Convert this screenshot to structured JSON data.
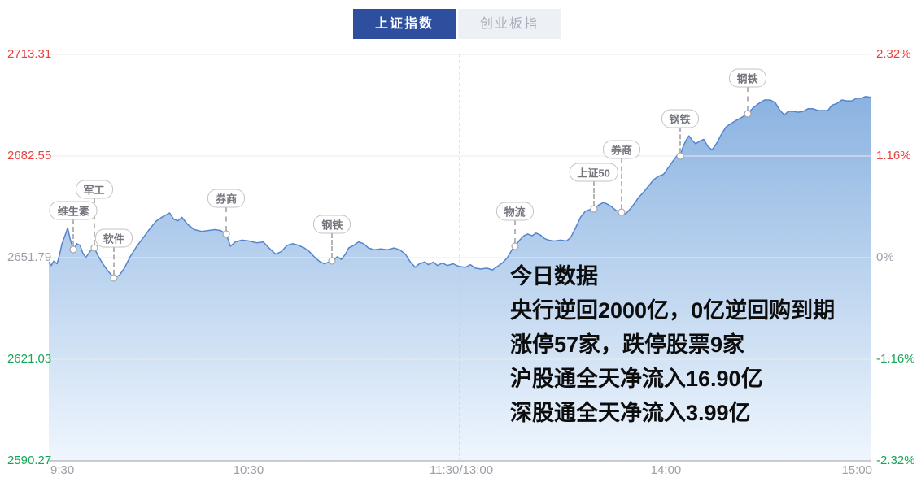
{
  "colors": {
    "accent": "#2e4f9e",
    "up": "#e5413e",
    "down": "#15a554",
    "neutral": "#9aa0a6",
    "line": "#5585cd",
    "fill_top": "#7fabde",
    "fill_bottom": "#eff6fd",
    "grid": "#ebebeb",
    "axis_line": "#9b9b9b"
  },
  "tabs": [
    {
      "label": "上证指数",
      "active": true
    },
    {
      "label": "创业板指",
      "active": false
    }
  ],
  "overlay": {
    "lines": [
      "今日数据",
      "央行逆回2000亿，0亿逆回购到期",
      "涨停57家，跌停股票9家",
      "沪股通全天净流入16.90亿",
      "深股通全天净流入3.99亿"
    ]
  },
  "chart_data": {
    "type": "area",
    "title": "上证指数",
    "baseline_close": 2651.79,
    "price_range": [
      2590.27,
      2713.31
    ],
    "ylim_pct": [
      -2.32,
      2.32
    ],
    "grid": true,
    "axis": [
      {
        "left": "2713.31",
        "right": "2.32%",
        "pct": 2.32,
        "tone": "red"
      },
      {
        "left": "2682.55",
        "right": "1.16%",
        "pct": 1.16,
        "tone": "red"
      },
      {
        "left": "2651.79",
        "right": "0%",
        "pct": 0,
        "tone": "gray"
      },
      {
        "left": "2621.03",
        "right": "-1.16%",
        "pct": -1.16,
        "tone": "green"
      },
      {
        "left": "2590.27",
        "right": "-2.32%",
        "pct": -2.32,
        "tone": "green"
      }
    ],
    "x_ticks": [
      {
        "label": "9:30",
        "f": 0.0,
        "align": "left"
      },
      {
        "label": "10:30",
        "f": 0.241,
        "align": "center"
      },
      {
        "label": "11:30/13:00",
        "f": 0.5,
        "align": "center"
      },
      {
        "label": "14:00",
        "f": 0.749,
        "align": "center"
      },
      {
        "label": "15:00",
        "f": 1.0,
        "align": "right"
      }
    ],
    "annotations": [
      {
        "label": "维生素",
        "f": 0.03,
        "point_pct": 0.09,
        "bubble_pct": 0.54
      },
      {
        "label": "军工",
        "f": 0.055,
        "point_pct": 0.11,
        "bubble_pct": 0.78
      },
      {
        "label": "软件",
        "f": 0.079,
        "point_pct": -0.23,
        "bubble_pct": 0.22
      },
      {
        "label": "券商",
        "f": 0.216,
        "point_pct": 0.27,
        "bubble_pct": 0.68
      },
      {
        "label": "钢铁",
        "f": 0.345,
        "point_pct": -0.04,
        "bubble_pct": 0.38
      },
      {
        "label": "物流",
        "f": 0.567,
        "point_pct": 0.13,
        "bubble_pct": 0.53
      },
      {
        "label": "上证50",
        "f": 0.663,
        "point_pct": 0.56,
        "bubble_pct": 0.97
      },
      {
        "label": "券商",
        "f": 0.697,
        "point_pct": 0.52,
        "bubble_pct": 1.23
      },
      {
        "label": "钢铁",
        "f": 0.768,
        "point_pct": 1.16,
        "bubble_pct": 1.59
      },
      {
        "label": "钢铁",
        "f": 0.85,
        "point_pct": 1.64,
        "bubble_pct": 2.05
      }
    ],
    "series": [
      {
        "name": "上证指数涨跌幅%",
        "points": [
          [
            0.0,
            -0.05
          ],
          [
            0.003,
            -0.09
          ],
          [
            0.006,
            -0.04
          ],
          [
            0.01,
            -0.07
          ],
          [
            0.013,
            0.03
          ],
          [
            0.016,
            0.16
          ],
          [
            0.02,
            0.26
          ],
          [
            0.023,
            0.34
          ],
          [
            0.026,
            0.21
          ],
          [
            0.03,
            0.09
          ],
          [
            0.034,
            0.16
          ],
          [
            0.038,
            0.14
          ],
          [
            0.041,
            0.06
          ],
          [
            0.045,
            0.0
          ],
          [
            0.05,
            0.07
          ],
          [
            0.055,
            0.12
          ],
          [
            0.06,
            0.02
          ],
          [
            0.065,
            -0.06
          ],
          [
            0.071,
            -0.14
          ],
          [
            0.079,
            -0.23
          ],
          [
            0.086,
            -0.2
          ],
          [
            0.092,
            -0.12
          ],
          [
            0.099,
            0.01
          ],
          [
            0.107,
            0.13
          ],
          [
            0.115,
            0.23
          ],
          [
            0.123,
            0.33
          ],
          [
            0.131,
            0.42
          ],
          [
            0.139,
            0.47
          ],
          [
            0.147,
            0.51
          ],
          [
            0.152,
            0.44
          ],
          [
            0.157,
            0.42
          ],
          [
            0.162,
            0.46
          ],
          [
            0.169,
            0.38
          ],
          [
            0.177,
            0.32
          ],
          [
            0.186,
            0.3
          ],
          [
            0.194,
            0.31
          ],
          [
            0.202,
            0.32
          ],
          [
            0.209,
            0.31
          ],
          [
            0.216,
            0.27
          ],
          [
            0.221,
            0.13
          ],
          [
            0.227,
            0.18
          ],
          [
            0.235,
            0.2
          ],
          [
            0.244,
            0.19
          ],
          [
            0.253,
            0.17
          ],
          [
            0.261,
            0.18
          ],
          [
            0.269,
            0.1
          ],
          [
            0.276,
            0.04
          ],
          [
            0.283,
            0.07
          ],
          [
            0.29,
            0.14
          ],
          [
            0.297,
            0.16
          ],
          [
            0.304,
            0.14
          ],
          [
            0.311,
            0.11
          ],
          [
            0.317,
            0.07
          ],
          [
            0.323,
            0.01
          ],
          [
            0.329,
            -0.04
          ],
          [
            0.335,
            -0.07
          ],
          [
            0.341,
            -0.05
          ],
          [
            0.345,
            -0.04
          ],
          [
            0.351,
            0.01
          ],
          [
            0.356,
            -0.02
          ],
          [
            0.361,
            0.04
          ],
          [
            0.365,
            0.11
          ],
          [
            0.371,
            0.14
          ],
          [
            0.377,
            0.18
          ],
          [
            0.383,
            0.16
          ],
          [
            0.389,
            0.11
          ],
          [
            0.396,
            0.09
          ],
          [
            0.404,
            0.1
          ],
          [
            0.412,
            0.09
          ],
          [
            0.42,
            0.11
          ],
          [
            0.427,
            0.09
          ],
          [
            0.434,
            0.04
          ],
          [
            0.44,
            -0.05
          ],
          [
            0.446,
            -0.11
          ],
          [
            0.451,
            -0.07
          ],
          [
            0.457,
            -0.05
          ],
          [
            0.462,
            -0.08
          ],
          [
            0.468,
            -0.05
          ],
          [
            0.473,
            -0.09
          ],
          [
            0.479,
            -0.06
          ],
          [
            0.485,
            -0.09
          ],
          [
            0.492,
            -0.07
          ],
          [
            0.499,
            -0.1
          ],
          [
            0.507,
            -0.11
          ],
          [
            0.513,
            -0.08
          ],
          [
            0.519,
            -0.12
          ],
          [
            0.526,
            -0.13
          ],
          [
            0.533,
            -0.12
          ],
          [
            0.54,
            -0.14
          ],
          [
            0.546,
            -0.1
          ],
          [
            0.552,
            -0.06
          ],
          [
            0.558,
            0.0
          ],
          [
            0.563,
            0.08
          ],
          [
            0.567,
            0.13
          ],
          [
            0.573,
            0.2
          ],
          [
            0.578,
            0.25
          ],
          [
            0.583,
            0.27
          ],
          [
            0.588,
            0.25
          ],
          [
            0.593,
            0.28
          ],
          [
            0.598,
            0.26
          ],
          [
            0.603,
            0.22
          ],
          [
            0.608,
            0.2
          ],
          [
            0.615,
            0.19
          ],
          [
            0.623,
            0.2
          ],
          [
            0.63,
            0.19
          ],
          [
            0.635,
            0.23
          ],
          [
            0.641,
            0.34
          ],
          [
            0.647,
            0.46
          ],
          [
            0.653,
            0.53
          ],
          [
            0.659,
            0.55
          ],
          [
            0.663,
            0.56
          ],
          [
            0.669,
            0.6
          ],
          [
            0.675,
            0.63
          ],
          [
            0.68,
            0.61
          ],
          [
            0.685,
            0.58
          ],
          [
            0.69,
            0.54
          ],
          [
            0.697,
            0.52
          ],
          [
            0.702,
            0.5
          ],
          [
            0.707,
            0.55
          ],
          [
            0.712,
            0.61
          ],
          [
            0.718,
            0.69
          ],
          [
            0.724,
            0.75
          ],
          [
            0.73,
            0.82
          ],
          [
            0.736,
            0.89
          ],
          [
            0.742,
            0.93
          ],
          [
            0.748,
            0.95
          ],
          [
            0.754,
            1.03
          ],
          [
            0.76,
            1.11
          ],
          [
            0.765,
            1.17
          ],
          [
            0.768,
            1.16
          ],
          [
            0.772,
            1.27
          ],
          [
            0.776,
            1.35
          ],
          [
            0.779,
            1.39
          ],
          [
            0.783,
            1.34
          ],
          [
            0.787,
            1.3
          ],
          [
            0.792,
            1.33
          ],
          [
            0.797,
            1.35
          ],
          [
            0.802,
            1.27
          ],
          [
            0.807,
            1.23
          ],
          [
            0.813,
            1.31
          ],
          [
            0.818,
            1.4
          ],
          [
            0.824,
            1.49
          ],
          [
            0.83,
            1.53
          ],
          [
            0.837,
            1.57
          ],
          [
            0.843,
            1.6
          ],
          [
            0.85,
            1.64
          ],
          [
            0.857,
            1.71
          ],
          [
            0.864,
            1.76
          ],
          [
            0.871,
            1.8
          ],
          [
            0.878,
            1.8
          ],
          [
            0.884,
            1.77
          ],
          [
            0.89,
            1.68
          ],
          [
            0.895,
            1.63
          ],
          [
            0.9,
            1.67
          ],
          [
            0.906,
            1.67
          ],
          [
            0.912,
            1.66
          ],
          [
            0.918,
            1.67
          ],
          [
            0.924,
            1.7
          ],
          [
            0.93,
            1.7
          ],
          [
            0.936,
            1.68
          ],
          [
            0.943,
            1.68
          ],
          [
            0.948,
            1.68
          ],
          [
            0.953,
            1.74
          ],
          [
            0.959,
            1.76
          ],
          [
            0.965,
            1.8
          ],
          [
            0.971,
            1.79
          ],
          [
            0.977,
            1.79
          ],
          [
            0.983,
            1.82
          ],
          [
            0.989,
            1.82
          ],
          [
            0.994,
            1.84
          ],
          [
            1.0,
            1.83
          ]
        ]
      }
    ]
  }
}
